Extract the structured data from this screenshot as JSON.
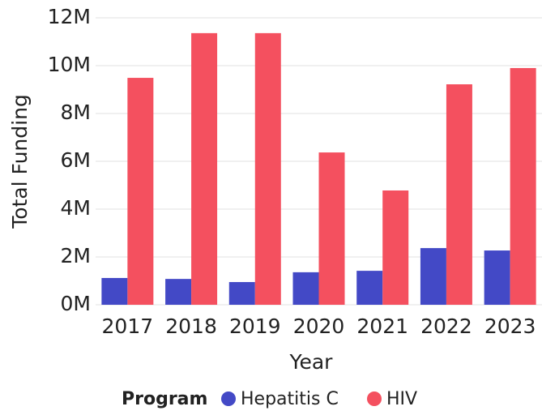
{
  "chart_data": {
    "type": "bar",
    "x_label": "Year",
    "y_label": "Total Funding",
    "legend_title": "Program",
    "categories": [
      "2017",
      "2018",
      "2019",
      "2020",
      "2021",
      "2022",
      "2023"
    ],
    "series": [
      {
        "name": "Hepatitis C",
        "color": "#4349c6",
        "values": [
          1120000,
          1080000,
          950000,
          1360000,
          1420000,
          2370000,
          2270000
        ]
      },
      {
        "name": "HIV",
        "color": "#f4505f",
        "values": [
          9490000,
          11360000,
          11360000,
          6370000,
          4780000,
          9220000,
          9900000
        ]
      }
    ],
    "ylim": [
      0,
      12000000
    ],
    "yticks": [
      {
        "value": 0,
        "label": "0M"
      },
      {
        "value": 2000000,
        "label": "2M"
      },
      {
        "value": 4000000,
        "label": "4M"
      },
      {
        "value": 6000000,
        "label": "6M"
      },
      {
        "value": 8000000,
        "label": "8M"
      },
      {
        "value": 10000000,
        "label": "10M"
      },
      {
        "value": 12000000,
        "label": "12M"
      }
    ],
    "grid": true
  }
}
